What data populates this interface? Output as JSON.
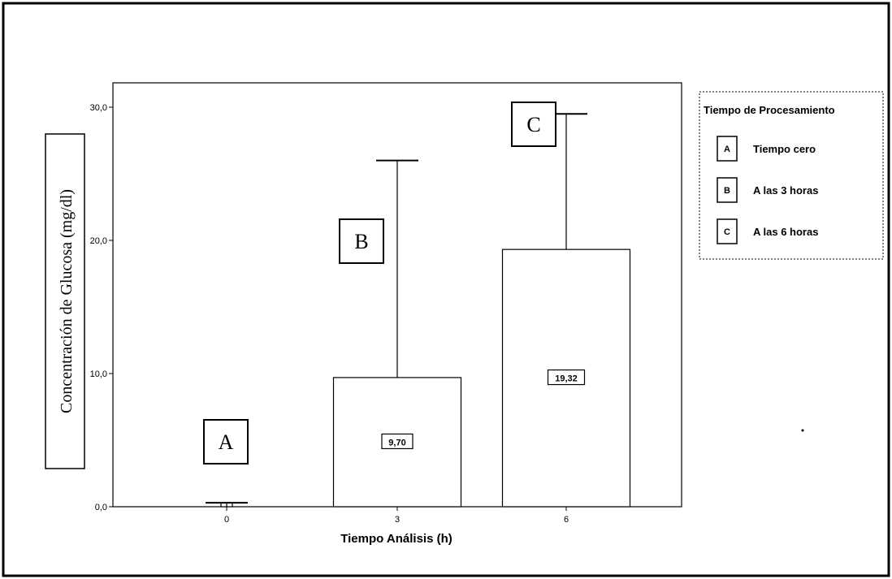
{
  "chart_data": {
    "type": "bar",
    "categories": [
      "0",
      "3",
      "6"
    ],
    "values": [
      0.0,
      9.7,
      19.32
    ],
    "error_upper": [
      0.3,
      26.0,
      29.5
    ],
    "data_labels": [
      "",
      "9,70",
      "19,32"
    ],
    "group_letters": [
      "A",
      "B",
      "C"
    ],
    "xlabel": "Tiempo Análisis (h)",
    "ylabel": "Concentración de Glucosa (mg/dl)",
    "ylim": [
      0,
      30
    ],
    "yticks": [
      "0,0",
      "10,0",
      "20,0",
      "30,0"
    ],
    "grid": false,
    "legend": {
      "title": "Tiempo de Procesamiento",
      "placement": "right",
      "items": [
        {
          "key": "A",
          "label": "Tiempo cero"
        },
        {
          "key": "B",
          "label": "A las 3 horas"
        },
        {
          "key": "C",
          "label": "A las 6 horas"
        }
      ]
    }
  }
}
